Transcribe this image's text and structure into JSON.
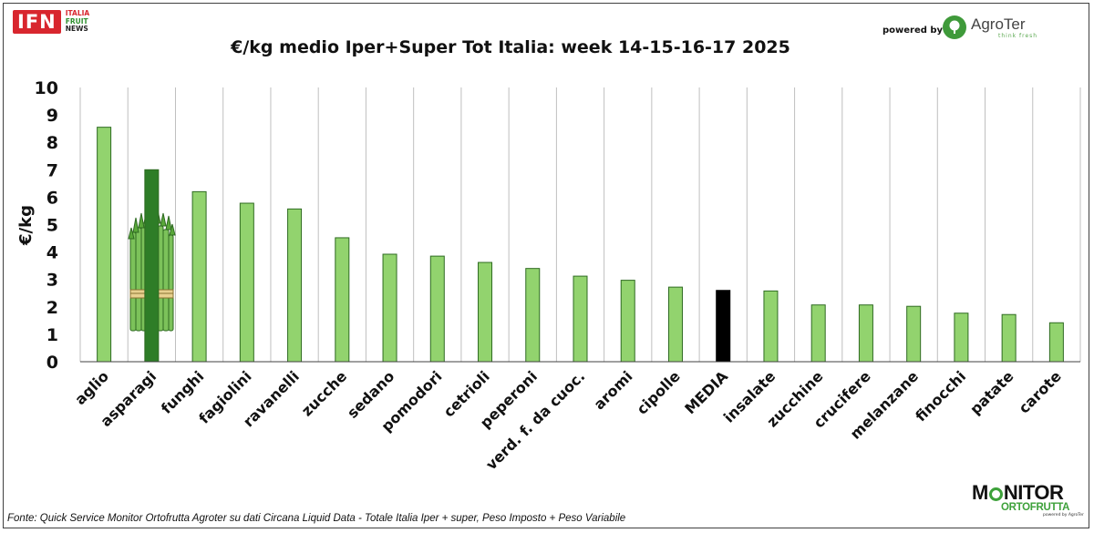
{
  "header": {
    "logo_main": "IFN",
    "logo_line1": "ITALIA",
    "logo_line2": "FRUIT",
    "logo_line3": "NEWS",
    "powered_by": "powered by",
    "sponsor_name": "AgroTer",
    "sponsor_tagline": "think fresh"
  },
  "footer": {
    "source": "Fonte: Quick Service Monitor Ortofrutta Agroter su dati Circana Liquid Data - Totale Italia Iper + super, Peso Imposto + Peso Variabile",
    "brand_top": "M",
    "brand_top_rest": "NITOR",
    "brand_bottom": "ORTOFRUTTA",
    "brand_tiny": "powered by AgroTer"
  },
  "colors": {
    "bar_default": "#92d36e",
    "bar_highlight": "#2e7d27",
    "bar_average": "#000000",
    "bar_stroke": "#2f6b22",
    "gridline": "#bfbfbf"
  },
  "chart_data": {
    "type": "bar",
    "title": "€/kg medio Iper+Super Tot Italia: week 14-15-16-17 2025",
    "xlabel": "",
    "ylabel": "€/kg",
    "ylim": [
      0,
      10
    ],
    "yticks": [
      0,
      1,
      2,
      3,
      4,
      5,
      6,
      7,
      8,
      9,
      10
    ],
    "grid": "vertical lines between categories",
    "legend": "none",
    "categories": [
      "aglio",
      "asparagi",
      "funghi",
      "fagiolini",
      "ravanelli",
      "zucche",
      "sedano",
      "pomodori",
      "cetrioli",
      "peperoni",
      "verd. f. da cuoc.",
      "aromi",
      "cipolle",
      "MEDIA",
      "insalate",
      "zucchine",
      "crucifere",
      "melanzane",
      "finocchi",
      "patate",
      "carote"
    ],
    "values": [
      8.55,
      7.0,
      6.2,
      5.78,
      5.57,
      4.52,
      3.92,
      3.85,
      3.62,
      3.4,
      3.12,
      2.97,
      2.72,
      2.6,
      2.58,
      2.07,
      2.07,
      2.02,
      1.77,
      1.72,
      1.42
    ],
    "highlight": "asparagi",
    "average_category": "MEDIA"
  }
}
